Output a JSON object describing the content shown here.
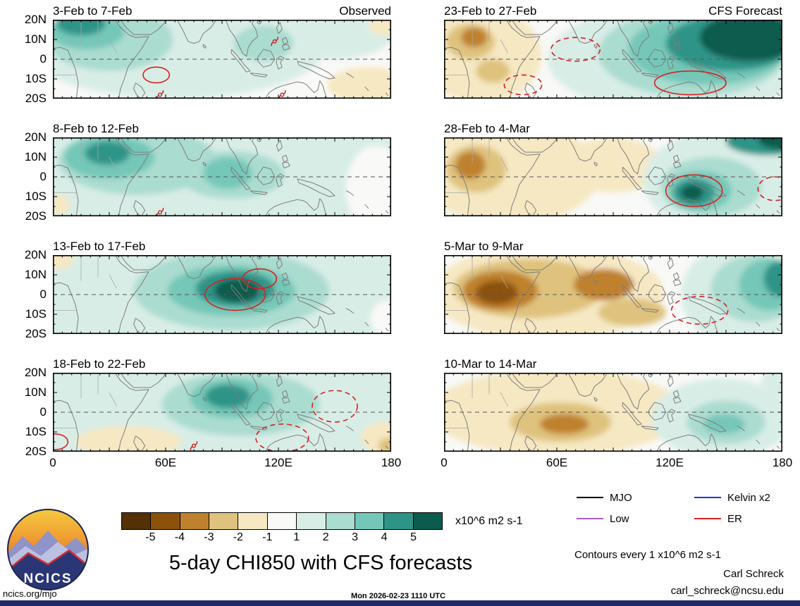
{
  "figure": {
    "title": "5-day CHI850 with CFS forecasts",
    "units_label": "x10^6 m2 s-1",
    "contour_note": "Contours every 1 x10^6 m2 s-1",
    "credit_name": "Carl Schreck",
    "credit_email": "carl_schreck@ncsu.edu",
    "site": "ncics.org/mjo",
    "timestamp": "Mon 2026-02-23 1110 UTC",
    "logo_text": "NCICS",
    "column_headers": {
      "left": "Observed",
      "right": "CFS Forecast"
    }
  },
  "axes": {
    "y_labels": [
      "20N",
      "10N",
      "0",
      "10S",
      "20S"
    ],
    "x_labels": [
      "0",
      "60E",
      "120E",
      "180"
    ],
    "x_label_lons": [
      0,
      60,
      120,
      180
    ]
  },
  "colorbar": {
    "labels": [
      "-5",
      "-4",
      "-3",
      "-2",
      "-1",
      "1",
      "2",
      "3",
      "4",
      "5"
    ],
    "colors": [
      "#543005",
      "#8c510a",
      "#bf812d",
      "#dfc27d",
      "#f6e8c3",
      "#f9f9f7",
      "#d9ede7",
      "#abdcd0",
      "#74c7b8",
      "#2f9488",
      "#0b5c4e"
    ]
  },
  "legend": {
    "items": [
      {
        "label": "MJO",
        "color": "#000000"
      },
      {
        "label": "Kelvin x2",
        "color": "#2233cc"
      },
      {
        "label": "Low",
        "color": "#a85cd6"
      },
      {
        "label": "ER",
        "color": "#dd2222"
      }
    ]
  },
  "chart_data": {
    "type": "heatmap",
    "variable": "CHI850 velocity potential anomaly (5-day mean)",
    "units": "x10^6 m2 s-1",
    "contour_interval": 1,
    "lon_range": [
      0,
      180
    ],
    "lat_range": [
      -20,
      20
    ],
    "panels": [
      {
        "title": "3-Feb to 7-Feb",
        "corner_label": "Observed",
        "col": 0,
        "row": 0,
        "bg": 0,
        "blobs": [
          {
            "lon": 65,
            "lat": 6,
            "rlon": 80,
            "rlat": 26,
            "level": 1
          },
          {
            "lon": 150,
            "lat": 14,
            "rlon": 32,
            "rlat": 14,
            "level": 1
          },
          {
            "lon": 30,
            "lat": 10,
            "rlon": 34,
            "rlat": 16,
            "level": 2
          },
          {
            "lon": 112,
            "lat": 8,
            "rlon": 16,
            "rlat": 9,
            "level": 2
          },
          {
            "lon": 18,
            "lat": 14,
            "rlon": 20,
            "rlat": 9,
            "level": 3
          },
          {
            "lon": 15,
            "lat": 18,
            "rlon": 13,
            "rlat": 6,
            "level": 4
          },
          {
            "lon": 168,
            "lat": -13,
            "rlon": 22,
            "rlat": 9,
            "level": -1
          },
          {
            "lon": 177,
            "lat": 17,
            "rlon": 9,
            "rlat": 5,
            "level": -1
          }
        ],
        "red_contours": [
          {
            "lon": 55,
            "lat": -8,
            "rlon": 7,
            "rlat": 4,
            "dashed": false
          }
        ],
        "storms": [
          [
            57,
            -18
          ],
          [
            118,
            9
          ],
          [
            122,
            -18
          ]
        ]
      },
      {
        "title": "8-Feb to 12-Feb",
        "col": 0,
        "row": 1,
        "bg": 1,
        "blobs": [
          {
            "lon": 172,
            "lat": -6,
            "rlon": 16,
            "rlat": 22,
            "level": 0
          },
          {
            "lon": 45,
            "lat": 8,
            "rlon": 42,
            "rlat": 17,
            "level": 2
          },
          {
            "lon": 95,
            "lat": 1,
            "rlon": 28,
            "rlat": 12,
            "level": 2
          },
          {
            "lon": 30,
            "lat": 10,
            "rlon": 24,
            "rlat": 11,
            "level": 3
          },
          {
            "lon": 93,
            "lat": 2,
            "rlon": 13,
            "rlat": 8,
            "level": 3
          },
          {
            "lon": 29,
            "lat": 12,
            "rlon": 12,
            "rlat": 6,
            "level": 4
          },
          {
            "lon": 3,
            "lat": -14,
            "rlon": 6,
            "rlat": 5,
            "level": -1
          }
        ],
        "red_contours": [],
        "storms": [
          [
            57,
            -18
          ]
        ]
      },
      {
        "title": "13-Feb to 17-Feb",
        "col": 0,
        "row": 2,
        "bg": 1,
        "blobs": [
          {
            "lon": 3,
            "lat": 18,
            "rlon": 8,
            "rlat": 5,
            "level": -1
          },
          {
            "lon": 178,
            "lat": -12,
            "rlon": 9,
            "rlat": 9,
            "level": 0
          },
          {
            "lon": 95,
            "lat": 2,
            "rlon": 52,
            "rlat": 20,
            "level": 2
          },
          {
            "lon": 95,
            "lat": 2,
            "rlon": 34,
            "rlat": 13,
            "level": 3
          },
          {
            "lon": 97,
            "lat": 3,
            "rlon": 21,
            "rlat": 9,
            "level": 4
          },
          {
            "lon": 98,
            "lat": 2,
            "rlon": 12,
            "rlat": 6,
            "level": 5
          }
        ],
        "red_contours": [
          {
            "lon": 97,
            "lat": 0,
            "rlon": 16,
            "rlat": 8,
            "dashed": false
          },
          {
            "lon": 110,
            "lat": 8,
            "rlon": 9,
            "rlat": 5,
            "dashed": false
          }
        ],
        "storms": []
      },
      {
        "title": "18-Feb to 22-Feb",
        "col": 0,
        "row": 3,
        "bg": 1,
        "blobs": [
          {
            "lon": 100,
            "lat": 4,
            "rlon": 42,
            "rlat": 16,
            "level": 2
          },
          {
            "lon": 95,
            "lat": 7,
            "rlon": 22,
            "rlat": 10,
            "level": 3
          },
          {
            "lon": 93,
            "lat": 8,
            "rlon": 12,
            "rlat": 6,
            "level": 4
          },
          {
            "lon": 40,
            "lat": -15,
            "rlon": 28,
            "rlat": 8,
            "level": -1
          },
          {
            "lon": 176,
            "lat": -13,
            "rlon": 12,
            "rlat": 8,
            "level": -1
          },
          {
            "lon": 179,
            "lat": -17,
            "rlon": 6,
            "rlat": 4,
            "level": -2
          }
        ],
        "red_contours": [
          {
            "lon": 122,
            "lat": -13,
            "rlon": 14,
            "rlat": 7,
            "dashed": true
          },
          {
            "lon": 150,
            "lat": 3,
            "rlon": 12,
            "rlat": 8,
            "dashed": true
          },
          {
            "lon": 1,
            "lat": -15,
            "rlon": 7,
            "rlat": 4,
            "dashed": false
          }
        ],
        "storms": [
          [
            75,
            -17
          ]
        ]
      },
      {
        "title": "23-Feb to 27-Feb",
        "corner_label": "CFS Forecast",
        "col": 1,
        "row": 0,
        "bg": 0,
        "blobs": [
          {
            "lon": 125,
            "lat": 0,
            "rlon": 70,
            "rlat": 28,
            "level": 1
          },
          {
            "lon": 132,
            "lat": 3,
            "rlon": 50,
            "rlat": 22,
            "level": 2
          },
          {
            "lon": 140,
            "lat": 5,
            "rlon": 42,
            "rlat": 18,
            "level": 3
          },
          {
            "lon": 152,
            "lat": 8,
            "rlon": 34,
            "rlat": 14,
            "level": 4
          },
          {
            "lon": 163,
            "lat": 11,
            "rlon": 27,
            "rlat": 12,
            "level": 5
          },
          {
            "lon": 20,
            "lat": 2,
            "rlon": 32,
            "rlat": 24,
            "level": -1
          },
          {
            "lon": 14,
            "lat": 9,
            "rlon": 13,
            "rlat": 9,
            "level": -2
          },
          {
            "lon": 26,
            "lat": -6,
            "rlon": 9,
            "rlat": 6,
            "level": -2
          },
          {
            "lon": 16,
            "lat": 11,
            "rlon": 7,
            "rlat": 5,
            "level": -3
          }
        ],
        "red_contours": [
          {
            "lon": 70,
            "lat": 5,
            "rlon": 13,
            "rlat": 6,
            "dashed": true
          },
          {
            "lon": 42,
            "lat": -13,
            "rlon": 10,
            "rlat": 5,
            "dashed": true
          },
          {
            "lon": 131,
            "lat": -12,
            "rlon": 19,
            "rlat": 6,
            "dashed": false
          }
        ],
        "storms": []
      },
      {
        "title": "28-Feb to 4-Mar",
        "col": 1,
        "row": 1,
        "bg": 0,
        "blobs": [
          {
            "lon": 35,
            "lat": 2,
            "rlon": 48,
            "rlat": 26,
            "level": -1
          },
          {
            "lon": 90,
            "lat": 6,
            "rlon": 26,
            "rlat": 14,
            "level": -1
          },
          {
            "lon": 17,
            "lat": 4,
            "rlon": 16,
            "rlat": 12,
            "level": -2
          },
          {
            "lon": 14,
            "lat": 6,
            "rlon": 8,
            "rlat": 7,
            "level": -3
          },
          {
            "lon": 148,
            "lat": -2,
            "rlon": 42,
            "rlat": 26,
            "level": 1
          },
          {
            "lon": 142,
            "lat": -5,
            "rlon": 27,
            "rlat": 15,
            "level": 2
          },
          {
            "lon": 136,
            "lat": -7,
            "rlon": 17,
            "rlat": 10,
            "level": 3
          },
          {
            "lon": 133,
            "lat": -8,
            "rlon": 11,
            "rlat": 7,
            "level": 4
          },
          {
            "lon": 132,
            "lat": -8,
            "rlon": 6,
            "rlat": 4,
            "level": 5
          },
          {
            "lon": 172,
            "lat": 18,
            "rlon": 22,
            "rlat": 7,
            "level": 4
          },
          {
            "lon": 179,
            "lat": 19,
            "rlon": 12,
            "rlat": 5,
            "level": 5
          }
        ],
        "red_contours": [
          {
            "lon": 133,
            "lat": -7,
            "rlon": 15,
            "rlat": 8,
            "dashed": false
          },
          {
            "lon": 176,
            "lat": -6,
            "rlon": 9,
            "rlat": 6,
            "dashed": true
          }
        ],
        "storms": []
      },
      {
        "title": "5-Mar to 9-Mar",
        "col": 1,
        "row": 2,
        "bg": 0,
        "blobs": [
          {
            "lon": 55,
            "lat": 1,
            "rlon": 62,
            "rlat": 24,
            "level": -1
          },
          {
            "lon": 45,
            "lat": 3,
            "rlon": 40,
            "rlat": 15,
            "level": -2
          },
          {
            "lon": 30,
            "lat": 2,
            "rlon": 20,
            "rlat": 10,
            "level": -3
          },
          {
            "lon": 28,
            "lat": 1,
            "rlon": 11,
            "rlat": 6,
            "level": -4
          },
          {
            "lon": 85,
            "lat": 5,
            "rlon": 16,
            "rlat": 8,
            "level": -3
          },
          {
            "lon": 100,
            "lat": -9,
            "rlon": 18,
            "rlat": 7,
            "level": -2
          },
          {
            "lon": 158,
            "lat": 0,
            "rlon": 32,
            "rlat": 26,
            "level": 1
          },
          {
            "lon": 166,
            "lat": 3,
            "rlon": 24,
            "rlat": 17,
            "level": 2
          },
          {
            "lon": 173,
            "lat": 5,
            "rlon": 16,
            "rlat": 13,
            "level": 3
          },
          {
            "lon": 179,
            "lat": 8,
            "rlon": 9,
            "rlat": 9,
            "level": 4
          }
        ],
        "red_contours": [
          {
            "lon": 136,
            "lat": -8,
            "rlon": 15,
            "rlat": 7,
            "dashed": true
          }
        ],
        "storms": []
      },
      {
        "title": "10-Mar to 14-Mar",
        "col": 1,
        "row": 3,
        "bg": 0,
        "blobs": [
          {
            "lon": 60,
            "lat": 0,
            "rlon": 68,
            "rlat": 22,
            "level": -1
          },
          {
            "lon": 62,
            "lat": -5,
            "rlon": 27,
            "rlat": 10,
            "level": -2
          },
          {
            "lon": 64,
            "lat": -6,
            "rlon": 13,
            "rlat": 5,
            "level": -3
          },
          {
            "lon": 148,
            "lat": -3,
            "rlon": 38,
            "rlat": 20,
            "level": 1
          },
          {
            "lon": 150,
            "lat": -5,
            "rlon": 21,
            "rlat": 11,
            "level": 2
          },
          {
            "lon": 149,
            "lat": -6,
            "rlon": 11,
            "rlat": 5,
            "level": 3
          },
          {
            "lon": 178,
            "lat": 16,
            "rlon": 9,
            "rlat": 7,
            "level": 1
          }
        ],
        "red_contours": [],
        "storms": []
      }
    ]
  }
}
